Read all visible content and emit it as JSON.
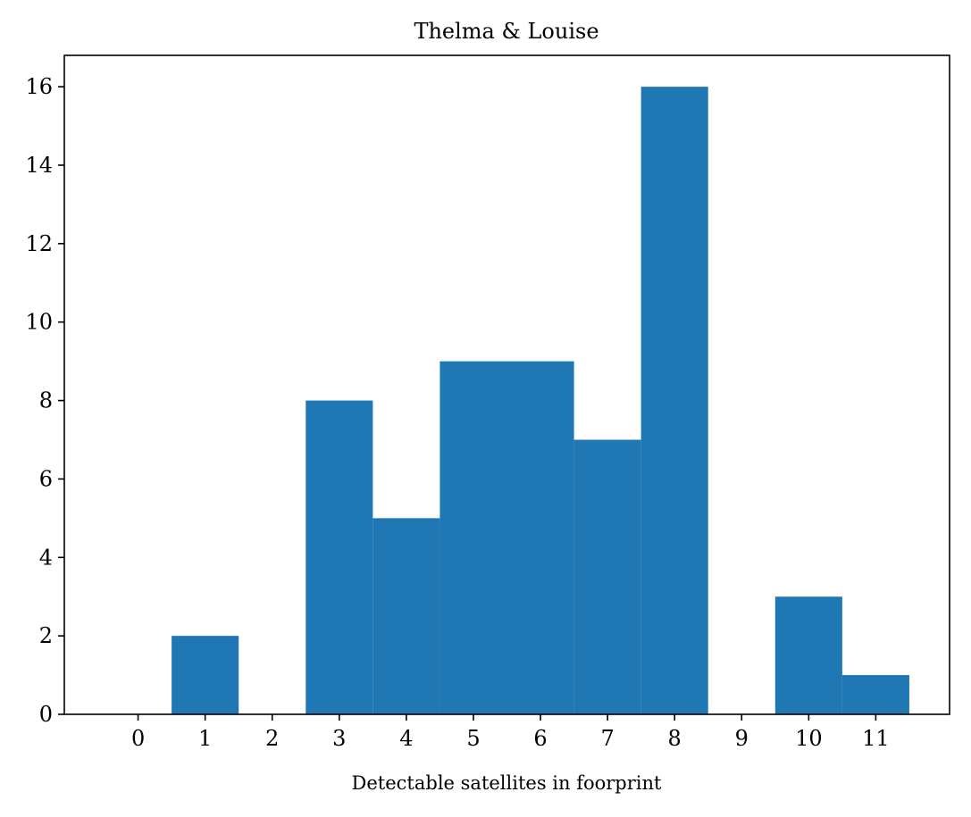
{
  "chart_data": {
    "type": "bar",
    "title": "Thelma & Louise",
    "xlabel": "Detectable satellites in foorprint",
    "ylabel": "",
    "categories": [
      "0",
      "1",
      "2",
      "3",
      "4",
      "5",
      "6",
      "7",
      "8",
      "9",
      "10",
      "11"
    ],
    "values": [
      0,
      2,
      0,
      8,
      5,
      9,
      9,
      7,
      16,
      0,
      3,
      1
    ],
    "xlim": [
      -1.1,
      12.1
    ],
    "ylim": [
      0,
      16.8
    ],
    "yticks": [
      0,
      2,
      4,
      6,
      8,
      10,
      12,
      14,
      16
    ],
    "bar_color": "#1f77b4",
    "grid": false,
    "legend": "none"
  }
}
